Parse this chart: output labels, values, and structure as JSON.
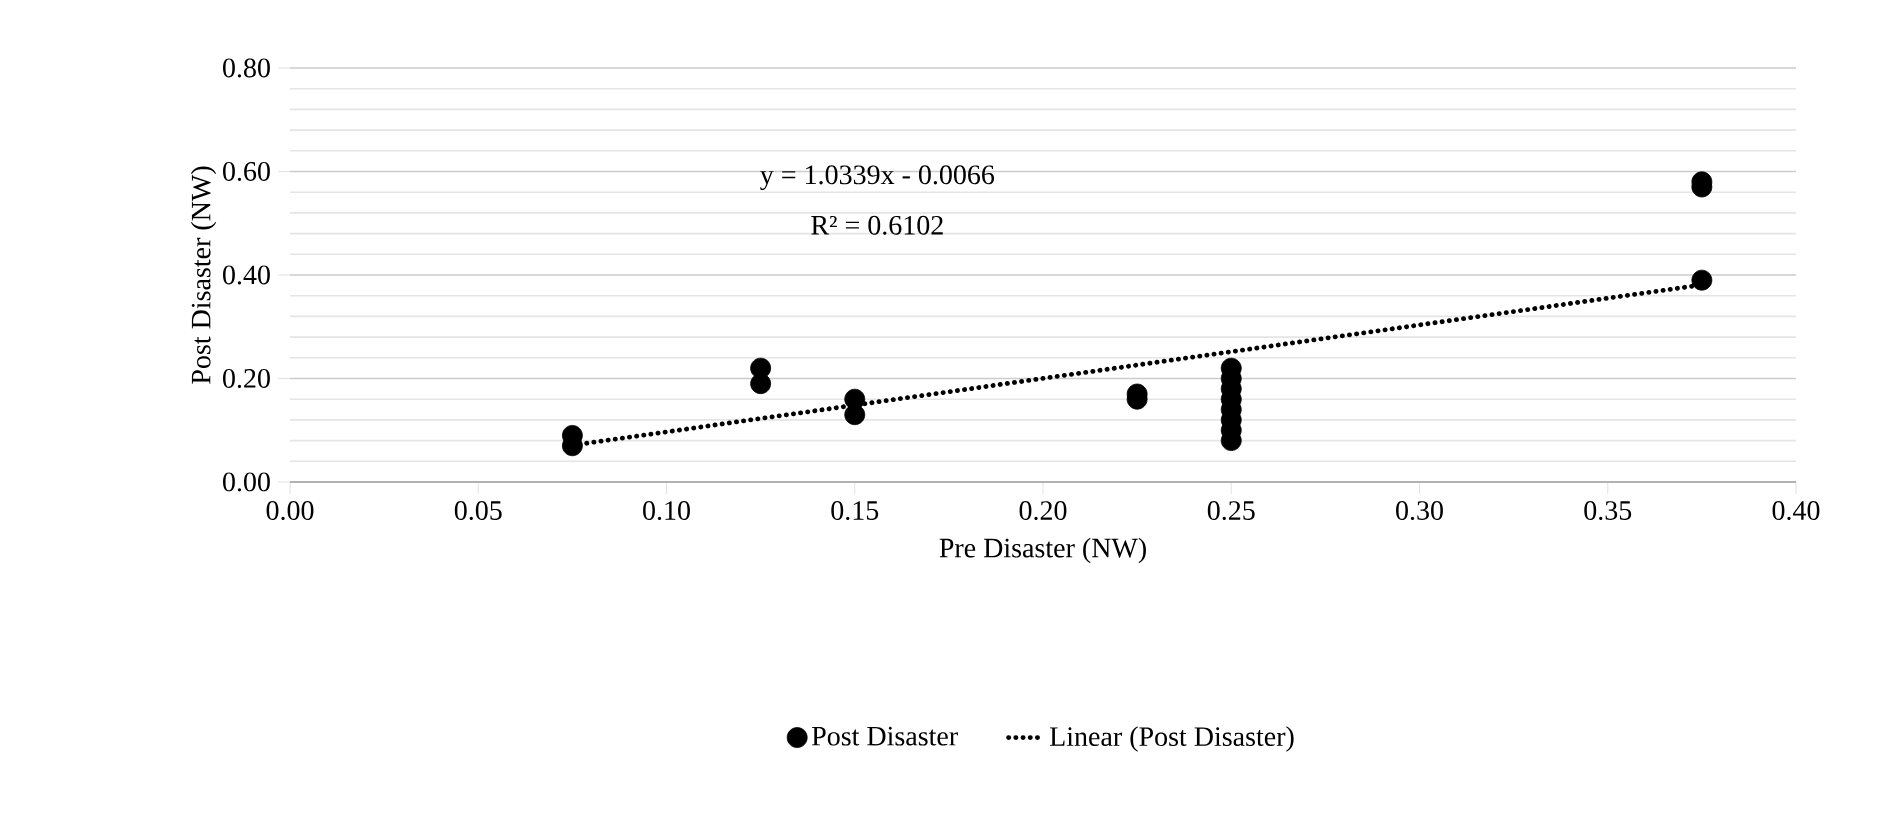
{
  "chart_data": {
    "type": "scatter",
    "xlabel": "Pre Disaster (NW)",
    "ylabel": "Post Disaster (NW)",
    "xlim": [
      0,
      0.4
    ],
    "ylim": [
      0,
      0.8
    ],
    "xticks": [
      {
        "value": 0,
        "label": "0.00"
      },
      {
        "value": 0.05,
        "label": "0.05"
      },
      {
        "value": 0.1,
        "label": "0.10"
      },
      {
        "value": 0.15,
        "label": "0.15"
      },
      {
        "value": 0.2,
        "label": "0.20"
      },
      {
        "value": 0.25,
        "label": "0.25"
      },
      {
        "value": 0.3,
        "label": "0.30"
      },
      {
        "value": 0.35,
        "label": "0.35"
      },
      {
        "value": 0.4,
        "label": "0.40"
      }
    ],
    "yticks": [
      {
        "value": 0,
        "label": "0.00"
      },
      {
        "value": 0.2,
        "label": "0.20"
      },
      {
        "value": 0.4,
        "label": "0.40"
      },
      {
        "value": 0.6,
        "label": "0.60"
      },
      {
        "value": 0.8,
        "label": "0.80"
      }
    ],
    "grid": "y",
    "legend": "bottom",
    "annotations": [
      "y = 1.0339x - 0.0066",
      "R² = 0.6102"
    ],
    "series": [
      {
        "name": "Post Disaster",
        "marker": "circle",
        "color": "#000000",
        "x": [
          0.075,
          0.075,
          0.125,
          0.125,
          0.15,
          0.15,
          0.225,
          0.225,
          0.25,
          0.25,
          0.25,
          0.25,
          0.25,
          0.25,
          0.25,
          0.25,
          0.375,
          0.375,
          0.375
        ],
        "values": [
          0.07,
          0.09,
          0.19,
          0.22,
          0.13,
          0.16,
          0.16,
          0.17,
          0.08,
          0.1,
          0.12,
          0.14,
          0.16,
          0.18,
          0.2,
          0.22,
          0.39,
          0.57,
          0.58
        ]
      },
      {
        "name": "Linear (Post Disaster)",
        "type": "line",
        "line_style": "dotted",
        "marker": "none",
        "color": "#000000",
        "x": [
          0.075,
          0.375
        ],
        "values": [
          0.071,
          0.381
        ]
      }
    ]
  }
}
